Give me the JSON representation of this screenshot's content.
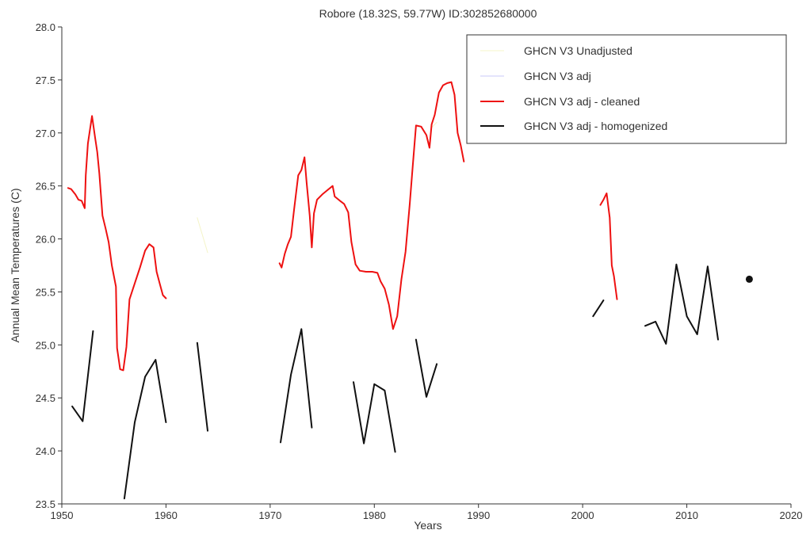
{
  "chart_data": {
    "type": "line",
    "title": "Robore (18.32S, 59.77W) ID:302852680000",
    "xlabel": "Years",
    "ylabel": "Annual Mean Temperatures (C)",
    "xlim": [
      1950,
      2020
    ],
    "ylim": [
      23.5,
      28.0
    ],
    "x_ticks": [
      1950,
      1960,
      1970,
      1980,
      1990,
      2000,
      2010,
      2020
    ],
    "x_tick_labels": [
      "1950",
      "1960",
      "1970",
      "1980",
      "1990",
      "2000",
      "2010",
      "2020"
    ],
    "y_ticks": [
      23.5,
      24.0,
      24.5,
      25.0,
      25.5,
      26.0,
      26.5,
      27.0,
      27.5,
      28.0
    ],
    "y_tick_labels": [
      "23.5",
      "24.0",
      "24.5",
      "25.0",
      "25.5",
      "26.0",
      "26.5",
      "27.0",
      "27.5",
      "28.0"
    ],
    "legend_position": "top-right",
    "series": [
      {
        "name": "GHCN V3 Unadjusted",
        "color": "#f4f4c8",
        "width": 1,
        "segments": [
          [
            [
              1963.0,
              26.2
            ],
            [
              1964.0,
              25.87
            ]
          ],
          [
            [
              1985.5,
              27.05
            ],
            [
              1986.0,
              27.1
            ]
          ]
        ]
      },
      {
        "name": "GHCN V3 adj",
        "color": "#c8c8f8",
        "width": 1,
        "segments": []
      },
      {
        "name": "GHCN V3 adj - cleaned",
        "color": "#ee1111",
        "width": 2,
        "segments": [
          [
            [
              1950.6,
              26.48
            ],
            [
              1950.9,
              26.47
            ],
            [
              1951.3,
              26.42
            ],
            [
              1951.6,
              26.37
            ],
            [
              1951.9,
              26.36
            ],
            [
              1952.2,
              26.29
            ],
            [
              1952.3,
              26.6
            ],
            [
              1952.5,
              26.9
            ],
            [
              1952.9,
              27.16
            ],
            [
              1953.2,
              26.95
            ],
            [
              1953.4,
              26.82
            ],
            [
              1953.6,
              26.62
            ],
            [
              1953.9,
              26.22
            ],
            [
              1954.2,
              26.1
            ],
            [
              1954.5,
              25.97
            ],
            [
              1954.8,
              25.75
            ],
            [
              1955.2,
              25.55
            ],
            [
              1955.3,
              24.97
            ],
            [
              1955.6,
              24.77
            ],
            [
              1955.9,
              24.76
            ],
            [
              1956.2,
              24.98
            ],
            [
              1956.5,
              25.43
            ],
            [
              1957.0,
              25.58
            ],
            [
              1957.5,
              25.73
            ],
            [
              1958.0,
              25.89
            ],
            [
              1958.4,
              25.95
            ],
            [
              1958.8,
              25.92
            ],
            [
              1959.1,
              25.69
            ],
            [
              1959.4,
              25.58
            ],
            [
              1959.7,
              25.47
            ],
            [
              1960.0,
              25.44
            ]
          ],
          [
            [
              1970.9,
              25.77
            ],
            [
              1971.1,
              25.73
            ],
            [
              1971.4,
              25.86
            ],
            [
              1971.7,
              25.95
            ],
            [
              1972.0,
              26.02
            ],
            [
              1972.3,
              26.28
            ],
            [
              1972.7,
              26.6
            ],
            [
              1973.0,
              26.65
            ],
            [
              1973.3,
              26.77
            ],
            [
              1973.5,
              26.53
            ],
            [
              1973.8,
              26.22
            ],
            [
              1974.0,
              25.92
            ],
            [
              1974.2,
              26.24
            ],
            [
              1974.5,
              26.37
            ],
            [
              1975.0,
              26.42
            ],
            [
              1975.5,
              26.46
            ],
            [
              1976.0,
              26.5
            ],
            [
              1976.2,
              26.4
            ],
            [
              1976.7,
              26.36
            ],
            [
              1977.1,
              26.33
            ],
            [
              1977.5,
              26.25
            ],
            [
              1977.8,
              25.97
            ],
            [
              1978.2,
              25.76
            ],
            [
              1978.6,
              25.7
            ],
            [
              1979.2,
              25.69
            ],
            [
              1979.8,
              25.69
            ],
            [
              1980.3,
              25.68
            ],
            [
              1980.6,
              25.6
            ],
            [
              1981.0,
              25.53
            ],
            [
              1981.4,
              25.38
            ],
            [
              1981.8,
              25.15
            ],
            [
              1982.2,
              25.27
            ],
            [
              1982.6,
              25.62
            ],
            [
              1983.0,
              25.88
            ],
            [
              1983.4,
              26.33
            ],
            [
              1983.7,
              26.7
            ],
            [
              1984.0,
              27.07
            ],
            [
              1984.5,
              27.06
            ],
            [
              1985.0,
              26.98
            ],
            [
              1985.3,
              26.86
            ],
            [
              1985.5,
              27.08
            ],
            [
              1985.8,
              27.17
            ],
            [
              1986.2,
              27.38
            ],
            [
              1986.6,
              27.45
            ],
            [
              1987.0,
              27.47
            ],
            [
              1987.4,
              27.48
            ],
            [
              1987.7,
              27.36
            ],
            [
              1988.0,
              27.0
            ],
            [
              1988.3,
              26.88
            ],
            [
              1988.6,
              26.73
            ]
          ],
          [
            [
              2001.7,
              26.32
            ],
            [
              2002.0,
              26.37
            ],
            [
              2002.3,
              26.43
            ],
            [
              2002.6,
              26.2
            ],
            [
              2002.8,
              25.75
            ],
            [
              2003.0,
              25.65
            ],
            [
              2003.3,
              25.43
            ]
          ]
        ]
      },
      {
        "name": "GHCN V3 adj - homogenized",
        "color": "#111111",
        "width": 2,
        "segments": [
          [
            [
              1951.0,
              24.42
            ],
            [
              1952.0,
              24.28
            ],
            [
              1953.0,
              25.13
            ]
          ],
          [
            [
              1956.0,
              23.55
            ],
            [
              1957.0,
              24.27
            ],
            [
              1958.0,
              24.7
            ],
            [
              1959.0,
              24.86
            ],
            [
              1960.0,
              24.27
            ]
          ],
          [
            [
              1963.0,
              25.02
            ],
            [
              1964.0,
              24.19
            ]
          ],
          [
            [
              1971.0,
              24.08
            ],
            [
              1972.0,
              24.72
            ],
            [
              1973.0,
              25.15
            ],
            [
              1974.0,
              24.22
            ]
          ],
          [
            [
              1978.0,
              24.65
            ],
            [
              1979.0,
              24.07
            ],
            [
              1980.0,
              24.63
            ],
            [
              1981.0,
              24.57
            ],
            [
              1982.0,
              23.99
            ]
          ],
          [
            [
              1984.0,
              25.05
            ],
            [
              1985.0,
              24.51
            ],
            [
              1986.0,
              24.82
            ]
          ],
          [
            [
              2001.0,
              25.27
            ],
            [
              2002.0,
              25.42
            ]
          ],
          [
            [
              2006.0,
              25.18
            ],
            [
              2007.0,
              25.22
            ],
            [
              2008.0,
              25.01
            ],
            [
              2009.0,
              25.76
            ],
            [
              2010.0,
              25.27
            ],
            [
              2011.0,
              25.1
            ],
            [
              2012.0,
              25.74
            ],
            [
              2013.0,
              25.05
            ]
          ]
        ],
        "points": [
          [
            2016.0,
            25.62
          ]
        ]
      }
    ]
  }
}
